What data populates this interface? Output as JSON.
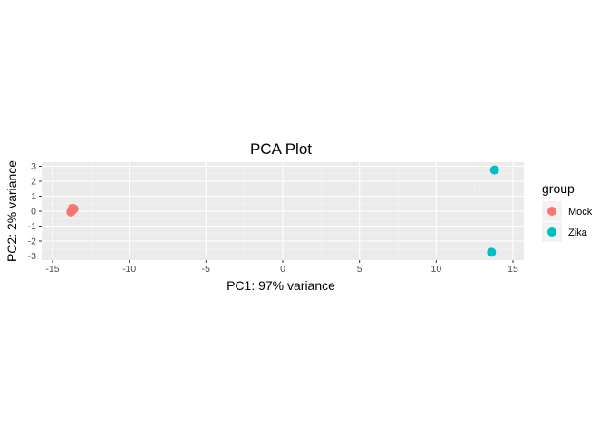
{
  "chart_data": {
    "type": "scatter",
    "title": "PCA Plot",
    "xlabel": "PC1: 97% variance",
    "ylabel": "PC2: 2% variance",
    "xlim": [
      -15,
      15
    ],
    "ylim": [
      -3,
      3
    ],
    "x_ticks": [
      -15,
      -10,
      -5,
      0,
      5,
      10,
      15
    ],
    "y_ticks": [
      -3,
      -2,
      -1,
      0,
      1,
      2,
      3
    ],
    "grid": true,
    "legend": {
      "title": "group",
      "position": "right"
    },
    "series": [
      {
        "name": "Mock",
        "color": "#F8766D",
        "points": [
          {
            "x": -13.7,
            "y": 0.2
          },
          {
            "x": -13.6,
            "y": 0.15
          },
          {
            "x": -13.8,
            "y": -0.05
          },
          {
            "x": -13.75,
            "y": 0.0
          }
        ]
      },
      {
        "name": "Zika",
        "color": "#00BFC4",
        "points": [
          {
            "x": 13.8,
            "y": 2.75
          },
          {
            "x": 13.6,
            "y": -2.75
          }
        ]
      }
    ]
  }
}
